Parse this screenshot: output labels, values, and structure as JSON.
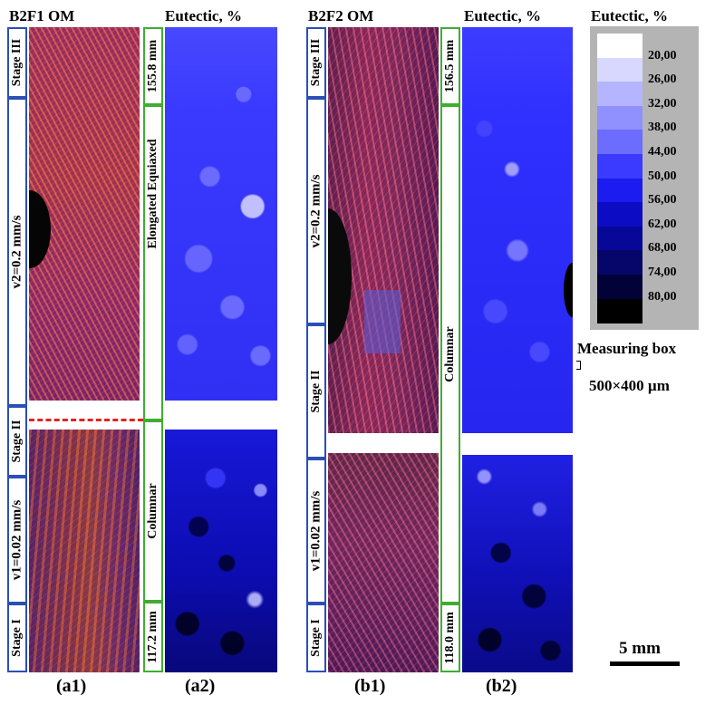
{
  "panel_a": {
    "om_title": "B2F1   OM",
    "eut_title": "Eutectic, %",
    "stage3": "Stage III",
    "stage2": "Stage II",
    "stage1": "Stage I",
    "v2": "v2=0.2 mm/s",
    "v1": "v1=0.02 mm/s",
    "top_mm": "155.8 mm",
    "bottom_mm": "117.2 mm",
    "zone_upper": "Elongated Equiaxed",
    "zone_lower": "Columnar",
    "om_label": "(a1)",
    "eut_label": "(a2)"
  },
  "panel_b": {
    "om_title": "B2F2   OM",
    "eut_title": "Eutectic, %",
    "stage3": "Stage III",
    "stage2": "Stage II",
    "stage1": "Stage I",
    "v2": "v2=0.2 mm/s",
    "v1": "v1=0.02 mm/s",
    "top_mm": "156.5 mm",
    "bottom_mm": "118.0 mm",
    "zone": "Columnar",
    "om_label": "(b1)",
    "eut_label": "(b2)"
  },
  "legend": {
    "title": "Eutectic, %",
    "levels": [
      "20,00",
      "26,00",
      "32,00",
      "38,00",
      "44,00",
      "50,00",
      "56,00",
      "62,00",
      "68,00",
      "74,00",
      "80,00"
    ],
    "colors": [
      "#ffffff",
      "#d8d8ff",
      "#b4b4ff",
      "#9090ff",
      "#6c6cff",
      "#3b3bff",
      "#1c1cf0",
      "#0c0cc4",
      "#080898",
      "#05056a",
      "#020238",
      "#000000"
    ]
  },
  "measuring_box": {
    "label": "Measuring box",
    "size": "500×400 µm"
  },
  "scale_bar": {
    "label": "5 mm"
  }
}
